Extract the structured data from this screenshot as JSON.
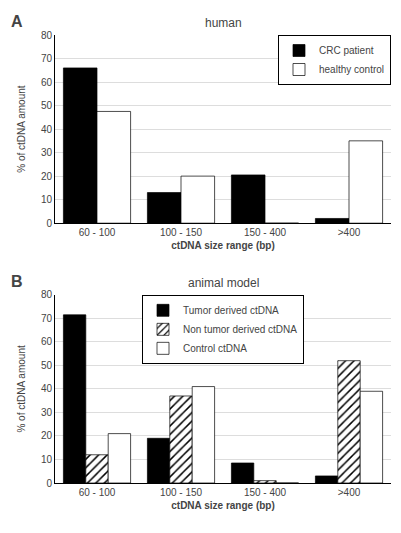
{
  "chart_data": [
    {
      "type": "bar",
      "title": "human",
      "annotations": [
        "A"
      ],
      "categories": [
        "60 - 100",
        "100 - 150",
        "150 - 400",
        ">400"
      ],
      "series": [
        {
          "name": "CRC patient",
          "color": "black",
          "values": [
            66,
            13,
            20.5,
            2
          ]
        },
        {
          "name": "healthy control",
          "color": "white",
          "values": [
            47.5,
            20,
            0,
            35
          ]
        }
      ],
      "xlabel": "ctDNA size range (bp)",
      "ylabel": "% of ctDNA amount",
      "ylim": [
        0,
        80
      ],
      "yticks": [
        0,
        10,
        20,
        30,
        40,
        50,
        60,
        70,
        80
      ],
      "grid": true,
      "legend": "upper right"
    },
    {
      "type": "bar",
      "title": "animal model",
      "annotations": [
        "B"
      ],
      "categories": [
        "60 - 100",
        "100 - 150",
        "150 - 400",
        ">400"
      ],
      "series": [
        {
          "name": "Tumor derived ctDNA",
          "color": "black",
          "values": [
            71.5,
            19,
            8.5,
            3
          ]
        },
        {
          "name": "Non tumor derived ctDNA",
          "color": "white",
          "marker": "hatch",
          "values": [
            12,
            37,
            1,
            52
          ]
        },
        {
          "name": "Control ctDNA",
          "color": "white",
          "values": [
            21,
            41,
            0,
            39
          ]
        }
      ],
      "xlabel": "ctDNA size range (bp)",
      "ylabel": "% of ctDNA amount",
      "ylim": [
        0,
        80
      ],
      "yticks": [
        0,
        10,
        20,
        30,
        40,
        50,
        60,
        70,
        80
      ],
      "grid": true,
      "legend": "upper center"
    }
  ]
}
